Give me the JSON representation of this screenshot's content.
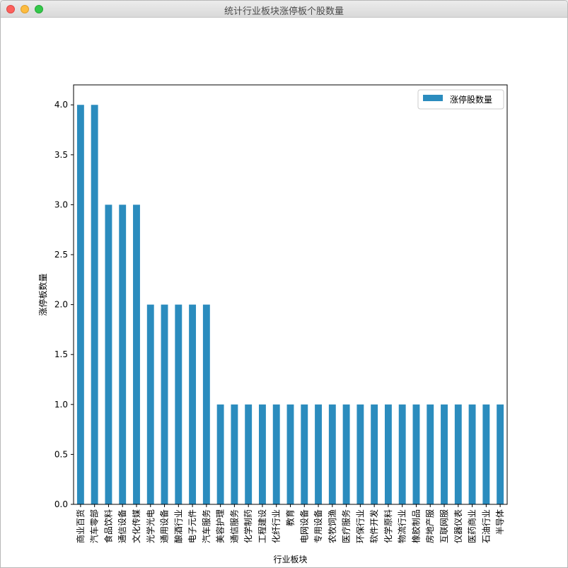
{
  "window": {
    "title": "统计行业板块涨停板个股数量",
    "buttons": [
      "close",
      "minimize",
      "maximize"
    ]
  },
  "colors": {
    "bar": "#2b8cbe",
    "axis": "#000000",
    "background": "#ffffff"
  },
  "chart_data": {
    "type": "bar",
    "title": "",
    "xlabel": "行业板块",
    "ylabel": "涨停板数量",
    "ylim": [
      0,
      4.2
    ],
    "yticks": [
      "0.0",
      "0.5",
      "1.0",
      "1.5",
      "2.0",
      "2.5",
      "3.0",
      "3.5",
      "4.0"
    ],
    "legend": {
      "position": "top-right",
      "entries": [
        "涨停股数量"
      ]
    },
    "categories": [
      "商业百货",
      "汽车零部",
      "食品饮料",
      "通信设备",
      "文化传媒",
      "光学光电",
      "通用设备",
      "酿酒行业",
      "电子元件",
      "汽车服务",
      "美容护理",
      "通信服务",
      "化学制药",
      "工程建设",
      "化纤行业",
      "教育",
      "电网设备",
      "专用设备",
      "农牧饲渔",
      "医疗服务",
      "环保行业",
      "软件开发",
      "化学原料",
      "物流行业",
      "橡胶制品",
      "房地产服",
      "互联网服",
      "仪器仪表",
      "医药商业",
      "石油行业",
      "半导体"
    ],
    "series": [
      {
        "name": "涨停股数量",
        "values": [
          4,
          4,
          3,
          3,
          3,
          2,
          2,
          2,
          2,
          2,
          1,
          1,
          1,
          1,
          1,
          1,
          1,
          1,
          1,
          1,
          1,
          1,
          1,
          1,
          1,
          1,
          1,
          1,
          1,
          1,
          1
        ]
      }
    ]
  }
}
